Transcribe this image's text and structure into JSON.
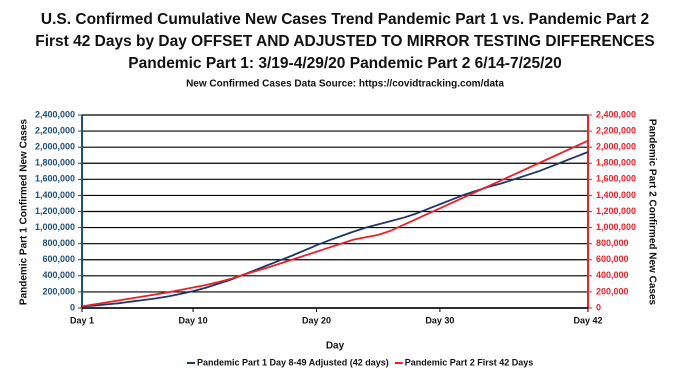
{
  "chart_data": {
    "type": "line",
    "title": [
      "U.S. Confirmed Cumulative New Cases Trend Pandemic Part 1 vs. Pandemic Part 2",
      "First 42 Days by Day OFFSET AND ADJUSTED TO MIRROR TESTING DIFFERENCES",
      "Pandemic Part 1: 3/19-4/29/20 Pandemic Part 2 6/14-7/25/20"
    ],
    "subtitle": "New Confirmed Cases Data Source: https://covidtracking.com/data",
    "x_label": "Day",
    "y_label": "Pandemic Part 1 Confirmed New Cases",
    "y2_label": "Pandemic Part 2 Confirmed New Cases",
    "categories": [
      "Day 1",
      null,
      null,
      null,
      null,
      null,
      null,
      null,
      null,
      "Day 10",
      null,
      null,
      null,
      null,
      null,
      null,
      null,
      null,
      null,
      "Day 20",
      null,
      null,
      null,
      null,
      null,
      null,
      null,
      null,
      null,
      "Day 30",
      null,
      null,
      null,
      null,
      null,
      null,
      null,
      null,
      null,
      null,
      null,
      "Day 42"
    ],
    "ylim": [
      0,
      2400000
    ],
    "yticks": [
      {
        "value": 0,
        "label": "0"
      },
      {
        "value": 200000,
        "label": "200,000"
      },
      {
        "value": 400000,
        "label": "400,000"
      },
      {
        "value": 600000,
        "label": "600,000"
      },
      {
        "value": 800000,
        "label": "800,000"
      },
      {
        "value": 1000000,
        "label": "1,000,000"
      },
      {
        "value": 1200000,
        "label": "1,200,000"
      },
      {
        "value": 1400000,
        "label": "1,400,000"
      },
      {
        "value": 1600000,
        "label": "1,600,000"
      },
      {
        "value": 1800000,
        "label": "1,800,000"
      },
      {
        "value": 2000000,
        "label": "2,000,000"
      },
      {
        "value": 2200000,
        "label": "2,200,000"
      },
      {
        "value": 2400000,
        "label": "2,400,000"
      }
    ],
    "y2lim": [
      0,
      2400000
    ],
    "y2ticks": [
      {
        "value": 0,
        "label": "0"
      },
      {
        "value": 200000,
        "label": "200,000"
      },
      {
        "value": 400000,
        "label": "400,000"
      },
      {
        "value": 600000,
        "label": "600,000"
      },
      {
        "value": 800000,
        "label": "800,000"
      },
      {
        "value": 1000000,
        "label": "1,000,000"
      },
      {
        "value": 1200000,
        "label": "1,200,000"
      },
      {
        "value": 1400000,
        "label": "1,400,000"
      },
      {
        "value": 1600000,
        "label": "1,600,000"
      },
      {
        "value": 1800000,
        "label": "1,800,000"
      },
      {
        "value": 2000000,
        "label": "2,000,000"
      },
      {
        "value": 2200000,
        "label": "2,200,000"
      },
      {
        "value": 2400000,
        "label": "2,400,000"
      }
    ],
    "grid": true,
    "legend": "bottom",
    "y_color": "#1f4e79",
    "y2_color": "#e8212b",
    "series": [
      {
        "name": "Pandemic Part 1 Day 8-49 Adjusted (42 days)",
        "color": "#1f3864",
        "values": [
          20000,
          30000,
          45000,
          60000,
          80000,
          100000,
          120000,
          145000,
          175000,
          210000,
          250000,
          300000,
          350000,
          410000,
          470000,
          530000,
          590000,
          650000,
          715000,
          780000,
          840000,
          895000,
          950000,
          1000000,
          1040000,
          1080000,
          1120000,
          1170000,
          1230000,
          1290000,
          1350000,
          1410000,
          1460000,
          1510000,
          1550000,
          1600000,
          1650000,
          1700000,
          1760000,
          1820000,
          1880000,
          1940000
        ]
      },
      {
        "name": "Pandemic Part 2 First 42 Days",
        "color": "#e8212b",
        "axis": "y2",
        "values": [
          20000,
          45000,
          70000,
          95000,
          120000,
          145000,
          170000,
          195000,
          225000,
          255000,
          285000,
          320000,
          360000,
          410000,
          455000,
          500000,
          550000,
          600000,
          650000,
          700000,
          750000,
          800000,
          850000,
          880000,
          910000,
          960000,
          1030000,
          1100000,
          1170000,
          1240000,
          1310000,
          1380000,
          1450000,
          1520000,
          1590000,
          1660000,
          1730000,
          1800000,
          1870000,
          1940000,
          2010000,
          2080000
        ]
      }
    ]
  }
}
